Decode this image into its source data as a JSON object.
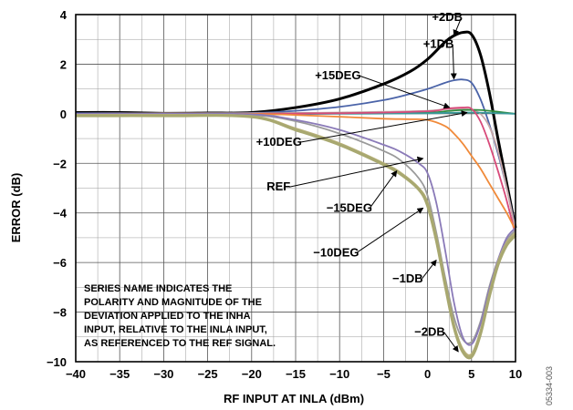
{
  "chart_data": {
    "type": "line",
    "xlabel": "RF INPUT AT INLA (dBm)",
    "ylabel": "ERROR (dB)",
    "xlim": [
      -40,
      10
    ],
    "ylim": [
      -10,
      4
    ],
    "xticks": [
      -40,
      -35,
      -30,
      -25,
      -20,
      -15,
      -10,
      -5,
      0,
      5,
      10
    ],
    "yticks": [
      -10,
      -8,
      -6,
      -4,
      -2,
      0,
      2,
      4
    ],
    "xtick_labels": [
      "−40",
      "−35",
      "−30",
      "−25",
      "−20",
      "−15",
      "−10",
      "−5",
      "0",
      "5",
      "10"
    ],
    "ytick_labels": [
      "−10",
      "−8",
      "−6",
      "−4",
      "−2",
      "0",
      "2",
      "4"
    ],
    "grid": true,
    "series": [
      {
        "name": "+2DB",
        "color": "#000000",
        "x": [
          -40,
          -35,
          -30,
          -25,
          -20,
          -15,
          -10,
          -5,
          -2,
          0,
          2,
          3,
          4,
          5,
          6,
          7,
          8,
          9,
          10
        ],
        "y": [
          0.05,
          0.05,
          0.02,
          0.03,
          0.05,
          0.25,
          0.6,
          1.2,
          1.7,
          2.2,
          2.9,
          3.15,
          3.28,
          3.2,
          2.4,
          0.9,
          -1.0,
          -2.8,
          -4.6
        ]
      },
      {
        "name": "+1DB",
        "color": "#4a63a8",
        "x": [
          -40,
          -35,
          -30,
          -25,
          -20,
          -15,
          -10,
          -5,
          -2,
          0,
          2,
          3,
          4,
          5,
          6,
          7,
          8,
          9,
          10
        ],
        "y": [
          0.02,
          0.02,
          0.0,
          0.02,
          0.03,
          0.12,
          0.28,
          0.55,
          0.8,
          1.0,
          1.25,
          1.35,
          1.38,
          1.25,
          0.6,
          -0.4,
          -1.6,
          -3.0,
          -4.6
        ]
      },
      {
        "name": "+15DEG",
        "color": "#c8a8a8",
        "x": [
          -40,
          -30,
          -20,
          -15,
          -10,
          -5,
          0,
          2,
          4,
          5,
          6,
          7,
          8,
          9,
          10
        ],
        "y": [
          0.0,
          0.02,
          0.02,
          0.03,
          0.05,
          0.08,
          0.12,
          0.18,
          0.2,
          0.15,
          0.0,
          -0.5,
          -1.5,
          -3.0,
          -4.7
        ]
      },
      {
        "name": "green (unnamed)",
        "color": "#2e8b3e",
        "x": [
          -40,
          -30,
          -20,
          -10,
          0,
          2,
          4,
          6,
          8,
          10
        ],
        "y": [
          0.0,
          0.0,
          0.0,
          0.02,
          0.05,
          0.1,
          0.15,
          0.15,
          0.08,
          0.0
        ]
      },
      {
        "name": "teal (unnamed)",
        "color": "#3a9a9a",
        "x": [
          -40,
          -30,
          -20,
          -10,
          0,
          5,
          10
        ],
        "y": [
          -0.05,
          -0.03,
          -0.02,
          0.0,
          0.02,
          0.05,
          0.0
        ]
      },
      {
        "name": "pink (unnamed)",
        "color": "#d84a7a",
        "x": [
          -40,
          -30,
          -20,
          -10,
          0,
          2,
          4,
          5,
          6,
          7,
          8,
          9,
          10
        ],
        "y": [
          0.0,
          0.0,
          0.0,
          0.02,
          0.1,
          0.2,
          0.25,
          0.2,
          -0.3,
          -1.2,
          -2.3,
          -3.5,
          -4.9
        ]
      },
      {
        "name": "+10DEG",
        "color": "#f08a3a",
        "x": [
          -40,
          -30,
          -20,
          -15,
          -10,
          -5,
          -2,
          0,
          2,
          3,
          4,
          5,
          6,
          7,
          8,
          9,
          10
        ],
        "y": [
          0.0,
          0.0,
          0.0,
          -0.05,
          -0.12,
          -0.2,
          -0.22,
          -0.25,
          -0.5,
          -0.8,
          -1.2,
          -1.7,
          -2.2,
          -2.8,
          -3.4,
          -4.0,
          -4.7
        ]
      },
      {
        "name": "REF",
        "color": "#9a9a9a",
        "x": [
          -40,
          -30,
          -20,
          -15,
          -10,
          -5,
          -3,
          -1,
          0,
          1,
          2,
          3,
          4,
          5,
          6,
          7,
          8,
          9,
          10
        ],
        "y": [
          0.0,
          0.0,
          -0.05,
          -0.3,
          -0.8,
          -1.5,
          -1.9,
          -2.6,
          -3.3,
          -4.8,
          -6.6,
          -8.2,
          -9.1,
          -9.2,
          -8.4,
          -7.0,
          -5.9,
          -5.1,
          -4.7
        ]
      },
      {
        "name": "−15DEG",
        "color": "#8a7ab8",
        "x": [
          -40,
          -30,
          -20,
          -15,
          -10,
          -5,
          -3,
          -1,
          0,
          1,
          2,
          3,
          4,
          5,
          6,
          7,
          8,
          9,
          10
        ],
        "y": [
          0.0,
          0.0,
          -0.02,
          -0.25,
          -0.65,
          -1.25,
          -1.55,
          -2.0,
          -2.4,
          -3.6,
          -5.5,
          -7.6,
          -9.0,
          -9.3,
          -8.5,
          -7.1,
          -5.9,
          -5.0,
          -4.6
        ]
      },
      {
        "name": "−1DB",
        "color": "#b8b07a",
        "x": [
          -40,
          -30,
          -20,
          -15,
          -10,
          -5,
          -3,
          -1,
          0,
          1,
          2,
          3,
          4,
          5,
          6,
          7,
          8,
          9,
          10
        ],
        "y": [
          -0.05,
          -0.05,
          -0.1,
          -0.6,
          -1.2,
          -2.0,
          -2.4,
          -3.0,
          -3.6,
          -5.0,
          -6.8,
          -8.5,
          -9.5,
          -9.7,
          -8.8,
          -7.3,
          -6.0,
          -5.2,
          -4.8
        ]
      },
      {
        "name": "−2DB",
        "color": "#a8a870",
        "x": [
          -40,
          -30,
          -20,
          -15,
          -10,
          -5,
          -3,
          -1,
          0,
          1,
          2,
          3,
          4,
          5,
          6,
          7,
          8,
          9,
          10
        ],
        "y": [
          -0.08,
          -0.08,
          -0.12,
          -0.65,
          -1.25,
          -2.05,
          -2.45,
          -3.05,
          -3.7,
          -5.1,
          -6.9,
          -8.6,
          -9.6,
          -9.8,
          -8.9,
          -7.4,
          -6.1,
          -5.3,
          -4.9
        ]
      }
    ],
    "annotations": [
      {
        "text": "+2DB",
        "label_at": [
          0.5,
          3.75
        ],
        "arrow_to": [
          3.0,
          3.15
        ]
      },
      {
        "text": "+1DB",
        "label_at": [
          -0.5,
          2.65
        ],
        "arrow_to": [
          3.0,
          1.4
        ]
      },
      {
        "text": "+15DEG",
        "label_at": [
          -12.8,
          1.4
        ],
        "arrow_to": [
          2.5,
          0.25
        ]
      },
      {
        "text": "+10DEG",
        "label_at": [
          -19.5,
          -1.3
        ],
        "arrow_to": [
          4.5,
          0.05
        ]
      },
      {
        "text": "REF",
        "label_at": [
          -18.3,
          -3.1
        ],
        "arrow_to": [
          -0.5,
          -1.8
        ]
      },
      {
        "text": "−15DEG",
        "label_at": [
          -11.5,
          -3.95
        ],
        "arrow_to": [
          -3.5,
          -2.3
        ]
      },
      {
        "text": "−10DEG",
        "label_at": [
          -13.0,
          -5.75
        ],
        "arrow_to": [
          -0.5,
          -3.8
        ]
      },
      {
        "text": "−1DB",
        "label_at": [
          -4.0,
          -6.8
        ],
        "arrow_to": [
          1.0,
          -5.9
        ]
      },
      {
        "text": "−2DB",
        "label_at": [
          -1.5,
          -8.95
        ],
        "arrow_to": [
          3.5,
          -9.6
        ]
      }
    ],
    "note": [
      "SERIES NAME INDICATES THE",
      "POLARITY AND MAGNITUDE OF THE",
      "DEVIATION APPLIED TO THE INHA",
      "INPUT, RELATIVE TO THE INLA INPUT,",
      "AS REFERENCED TO THE REF SIGNAL."
    ],
    "figure_id": "05334-003"
  }
}
